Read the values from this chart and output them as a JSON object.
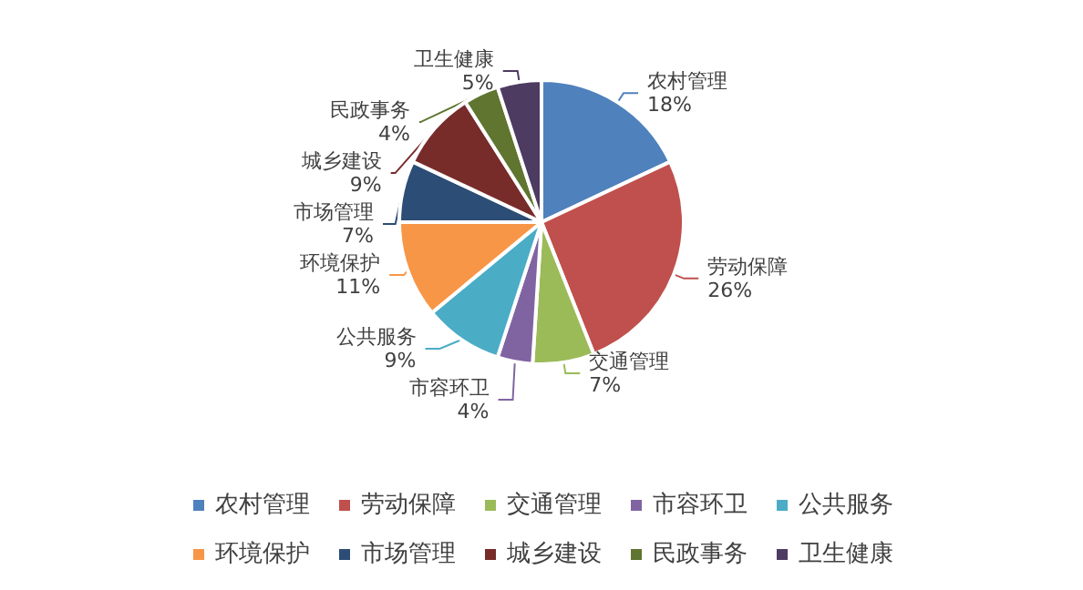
{
  "chart_data": {
    "type": "pie",
    "categories": [
      "农村管理",
      "劳动保障",
      "交通管理",
      "市容环卫",
      "公共服务",
      "环境保护",
      "市场管理",
      "城乡建设",
      "民政事务",
      "卫生健康"
    ],
    "values": [
      18,
      26,
      7,
      4,
      9,
      11,
      7,
      9,
      4,
      5
    ],
    "value_labels": [
      "18%",
      "26%",
      "7%",
      "4%",
      "9%",
      "11%",
      "7%",
      "9%",
      "4%",
      "5%"
    ],
    "colors": [
      "#4f81bd",
      "#c0504d",
      "#9bbb59",
      "#8064a2",
      "#4bacc6",
      "#f79646",
      "#2c4d75",
      "#772c2a",
      "#5f7530",
      "#4d3b62"
    ],
    "legend": "bottom"
  }
}
